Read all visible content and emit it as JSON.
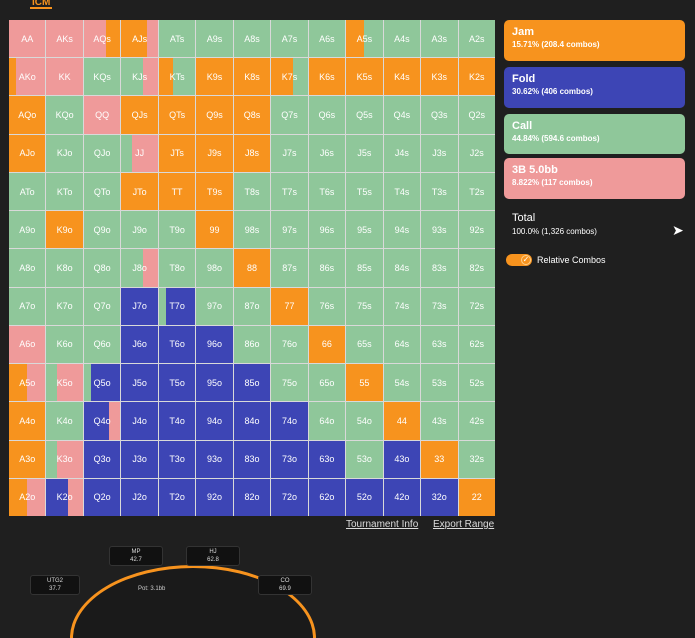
{
  "tab": {
    "label": "ICM"
  },
  "colors": {
    "jam": "#f7931e",
    "fold": "#3d45b5",
    "call": "#8fc79a",
    "bet3": "#ef9a9a"
  },
  "grid": {
    "rows": [
      [
        "AA",
        "AKs",
        "AQs",
        "AJs",
        "ATs",
        "A9s",
        "A8s",
        "A7s",
        "A6s",
        "A5s",
        "A4s",
        "A3s",
        "A2s"
      ],
      [
        "AKo",
        "KK",
        "KQs",
        "KJs",
        "KTs",
        "K9s",
        "K8s",
        "K7s",
        "K6s",
        "K5s",
        "K4s",
        "K3s",
        "K2s"
      ],
      [
        "AQo",
        "KQo",
        "QQ",
        "QJs",
        "QTs",
        "Q9s",
        "Q8s",
        "Q7s",
        "Q6s",
        "Q5s",
        "Q4s",
        "Q3s",
        "Q2s"
      ],
      [
        "AJo",
        "KJo",
        "QJo",
        "JJ",
        "JTs",
        "J9s",
        "J8s",
        "J7s",
        "J6s",
        "J5s",
        "J4s",
        "J3s",
        "J2s"
      ],
      [
        "ATo",
        "KTo",
        "QTo",
        "JTo",
        "TT",
        "T9s",
        "T8s",
        "T7s",
        "T6s",
        "T5s",
        "T4s",
        "T3s",
        "T2s"
      ],
      [
        "A9o",
        "K9o",
        "Q9o",
        "J9o",
        "T9o",
        "99",
        "98s",
        "97s",
        "96s",
        "95s",
        "94s",
        "93s",
        "92s"
      ],
      [
        "A8o",
        "K8o",
        "Q8o",
        "J8o",
        "T8o",
        "98o",
        "88",
        "87s",
        "86s",
        "85s",
        "84s",
        "83s",
        "82s"
      ],
      [
        "A7o",
        "K7o",
        "Q7o",
        "J7o",
        "T7o",
        "97o",
        "87o",
        "77",
        "76s",
        "75s",
        "74s",
        "73s",
        "72s"
      ],
      [
        "A6o",
        "K6o",
        "Q6o",
        "J6o",
        "T6o",
        "96o",
        "86o",
        "76o",
        "66",
        "65s",
        "64s",
        "63s",
        "62s"
      ],
      [
        "A5o",
        "K5o",
        "Q5o",
        "J5o",
        "T5o",
        "95o",
        "85o",
        "75o",
        "65o",
        "55",
        "54s",
        "53s",
        "52s"
      ],
      [
        "A4o",
        "K4o",
        "Q4o",
        "J4o",
        "T4o",
        "94o",
        "84o",
        "74o",
        "64o",
        "54o",
        "44",
        "43s",
        "42s"
      ],
      [
        "A3o",
        "K3o",
        "Q3o",
        "J3o",
        "T3o",
        "93o",
        "83o",
        "73o",
        "63o",
        "53o",
        "43o",
        "33",
        "32s"
      ],
      [
        "A2o",
        "K2o",
        "Q2o",
        "J2o",
        "T2o",
        "92o",
        "82o",
        "72o",
        "62o",
        "52o",
        "42o",
        "32o",
        "22"
      ]
    ]
  },
  "actions": {
    "jam": {
      "name": "Jam",
      "pct": "15.71% (208.4 combos)"
    },
    "fold": {
      "name": "Fold",
      "pct": "30.62% (406 combos)"
    },
    "call": {
      "name": "Call",
      "pct": "44.84% (594.6 combos)"
    },
    "bet3": {
      "name": "3B 5.0bb",
      "pct": "8.822% (117 combos)"
    }
  },
  "total": {
    "name": "Total",
    "pct": "100.0% (1,326 combos)"
  },
  "toggle": {
    "label": "Relative Combos",
    "on": true
  },
  "links": {
    "tournament_info": "Tournament Info",
    "export_range": "Export Range"
  },
  "table": {
    "seats": [
      {
        "pos": "MP",
        "stack": "42.7"
      },
      {
        "pos": "HJ",
        "stack": "62.8"
      },
      {
        "pos": "UTG2",
        "stack": "37.7"
      },
      {
        "pos": "CO",
        "stack": "69.9"
      }
    ],
    "pot": "Pot: 3.1bb"
  }
}
